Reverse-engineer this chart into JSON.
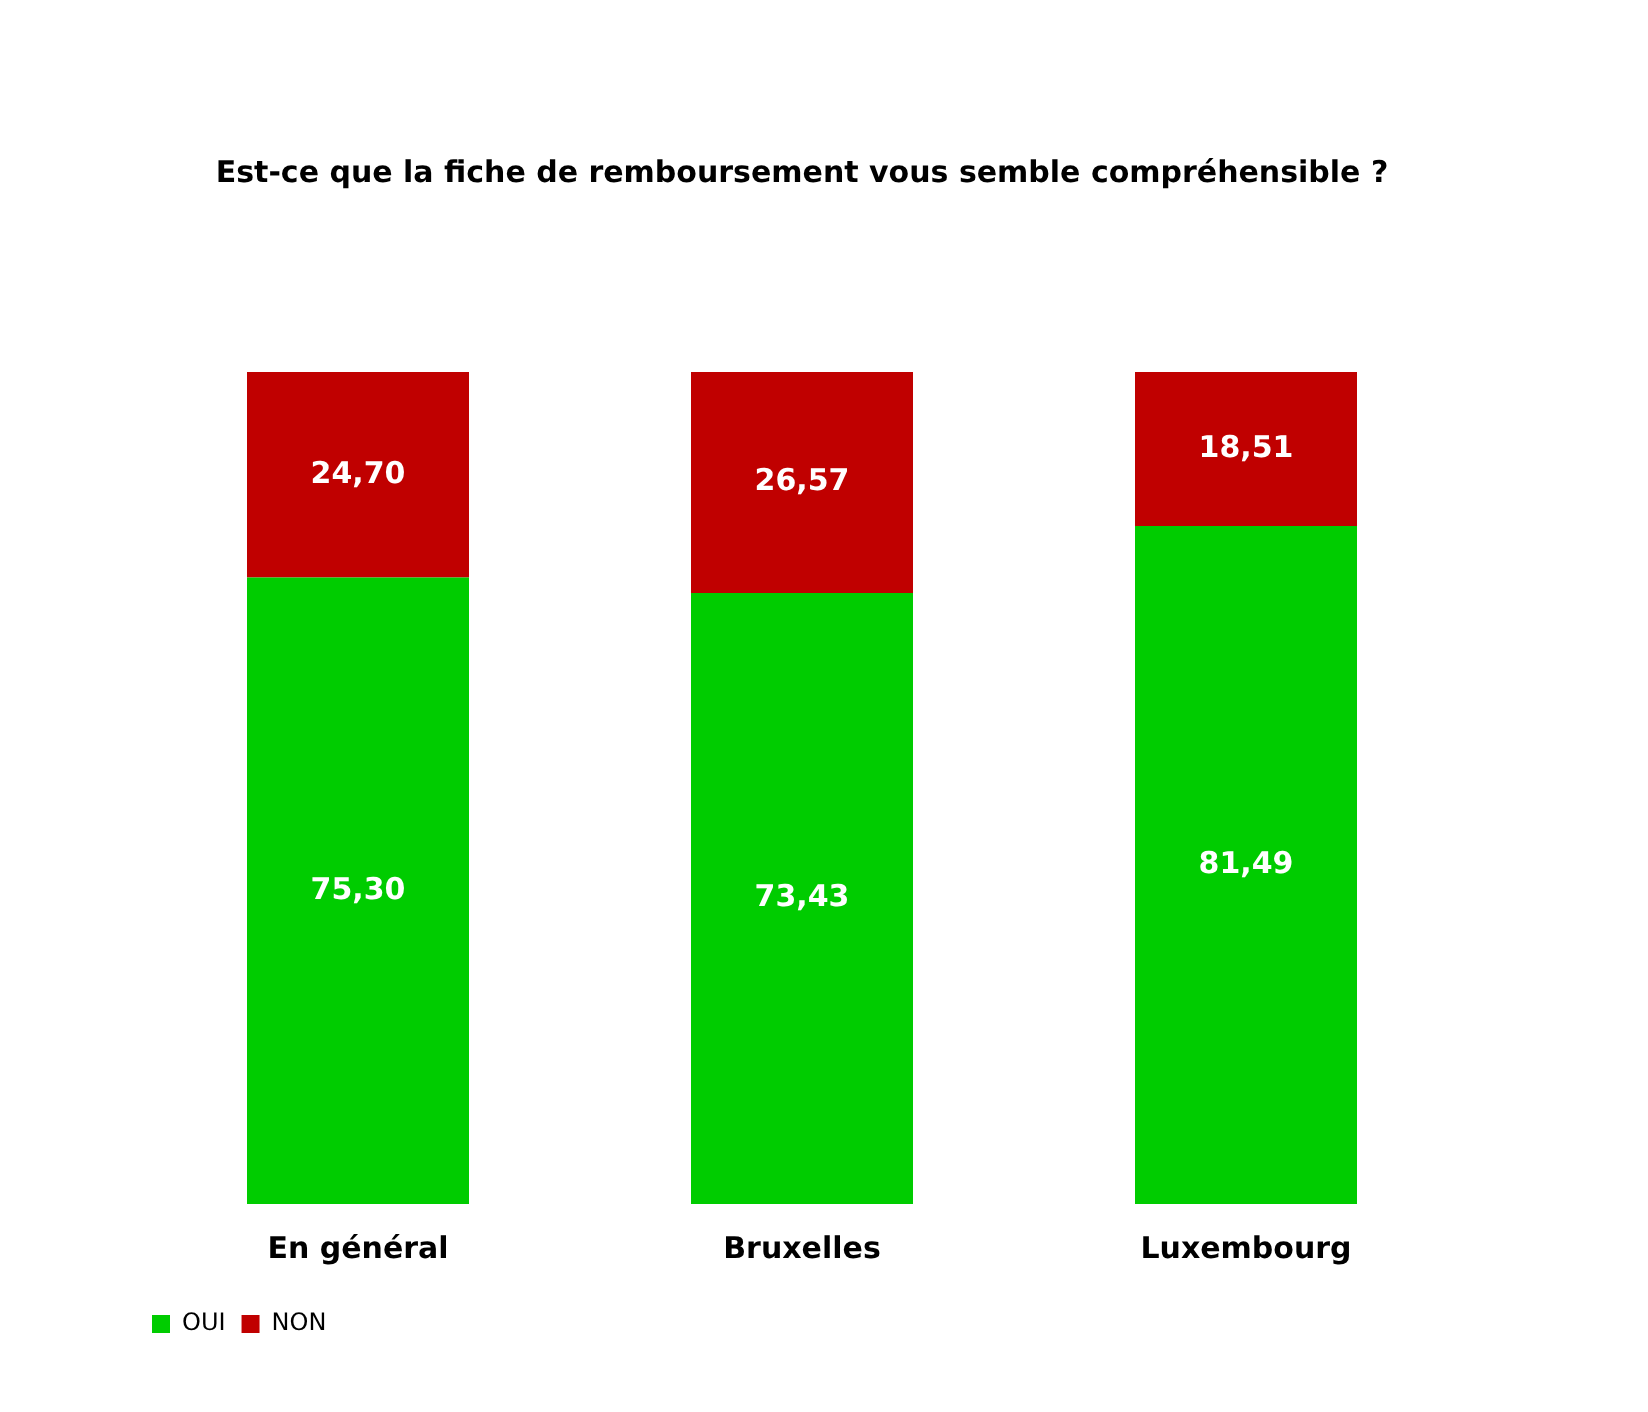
{
  "chart_data": {
    "type": "bar",
    "title": "Est-ce que la fiche de remboursement vous semble compréhensible ?",
    "categories": [
      "En général",
      "Bruxelles",
      "Luxembourg"
    ],
    "stacked": true,
    "tick_labels": "x",
    "grid": false,
    "legend": "bottom left",
    "series": [
      {
        "name": "OUI",
        "color": "#00cc00",
        "values": [
          75.3,
          73.43,
          81.49
        ],
        "value_labels": [
          "75,30",
          "73,43",
          "81,49"
        ]
      },
      {
        "name": "NON",
        "color": "#c00000",
        "values": [
          24.7,
          26.57,
          18.51
        ],
        "value_labels": [
          "24,70",
          "26,57",
          "18,51"
        ]
      }
    ]
  }
}
